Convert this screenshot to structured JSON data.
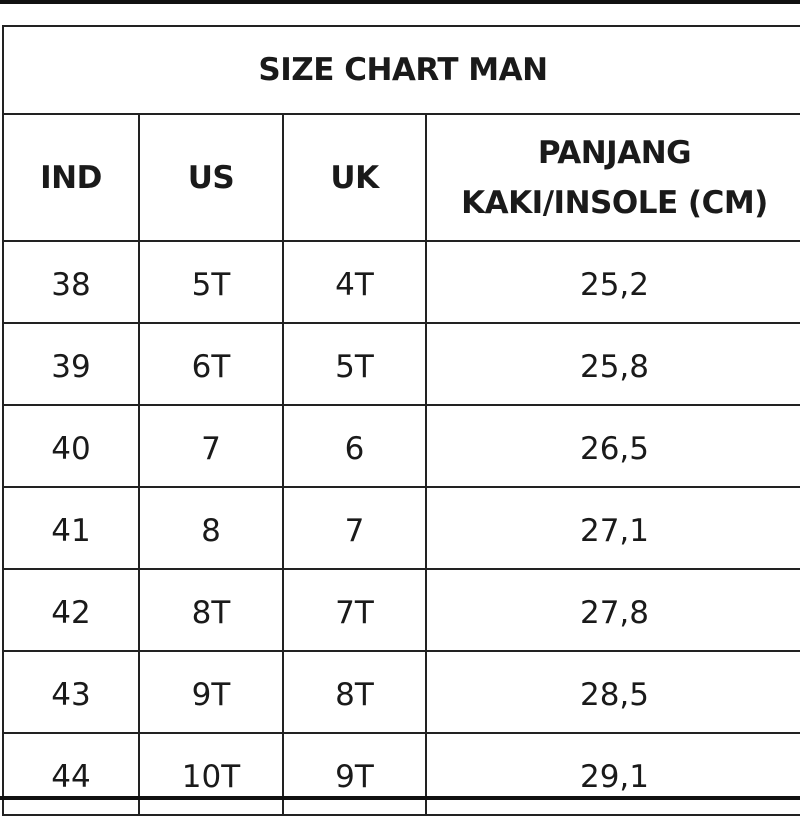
{
  "title": "SIZE CHART MAN",
  "headers": [
    "IND",
    "US",
    "UK",
    "PANJANG KAKI/INSOLE (CM)"
  ],
  "header_last_lines": [
    "PANJANG",
    "KAKI/INSOLE (CM)"
  ],
  "rows": [
    [
      "38",
      "5T",
      "4T",
      "25,2"
    ],
    [
      "39",
      "6T",
      "5T",
      "25,8"
    ],
    [
      "40",
      "7",
      "6",
      "26,5"
    ],
    [
      "41",
      "8",
      "7",
      "27,1"
    ],
    [
      "42",
      "8T",
      "7T",
      "27,8"
    ],
    [
      "43",
      "9T",
      "8T",
      "28,5"
    ],
    [
      "44",
      "10T",
      "9T",
      "29,1"
    ]
  ]
}
